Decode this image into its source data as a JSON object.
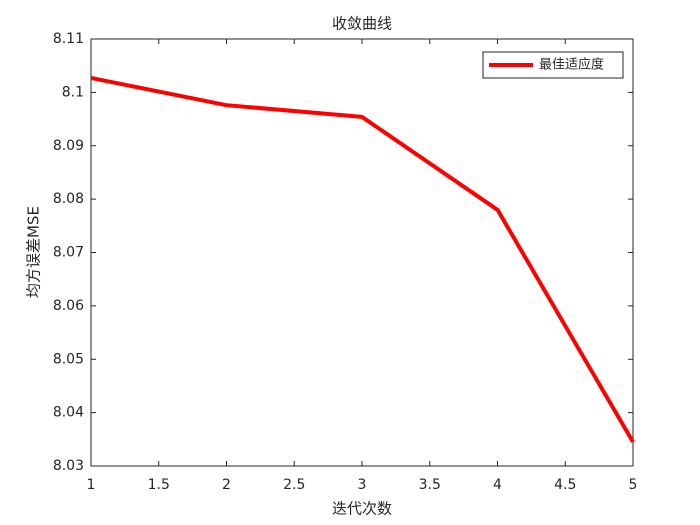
{
  "chart_data": {
    "type": "line",
    "title": "收敛曲线",
    "xlabel": "迭代次数",
    "ylabel": "均方误差MSE",
    "x": [
      1,
      2,
      3,
      4,
      5
    ],
    "series": [
      {
        "name": "最佳适应度",
        "color": "#ff0000",
        "values": [
          8.1027,
          8.0976,
          8.0954,
          8.078,
          8.0345
        ]
      }
    ],
    "xlim": [
      1,
      5
    ],
    "xticks": [
      1,
      1.5,
      2,
      2.5,
      3,
      3.5,
      4,
      4.5,
      5
    ],
    "ylim": [
      8.03,
      8.11
    ],
    "yticks": [
      8.03,
      8.04,
      8.05,
      8.06,
      8.07,
      8.08,
      8.09,
      8.1,
      8.11
    ],
    "grid": false,
    "legend": "northeast"
  }
}
